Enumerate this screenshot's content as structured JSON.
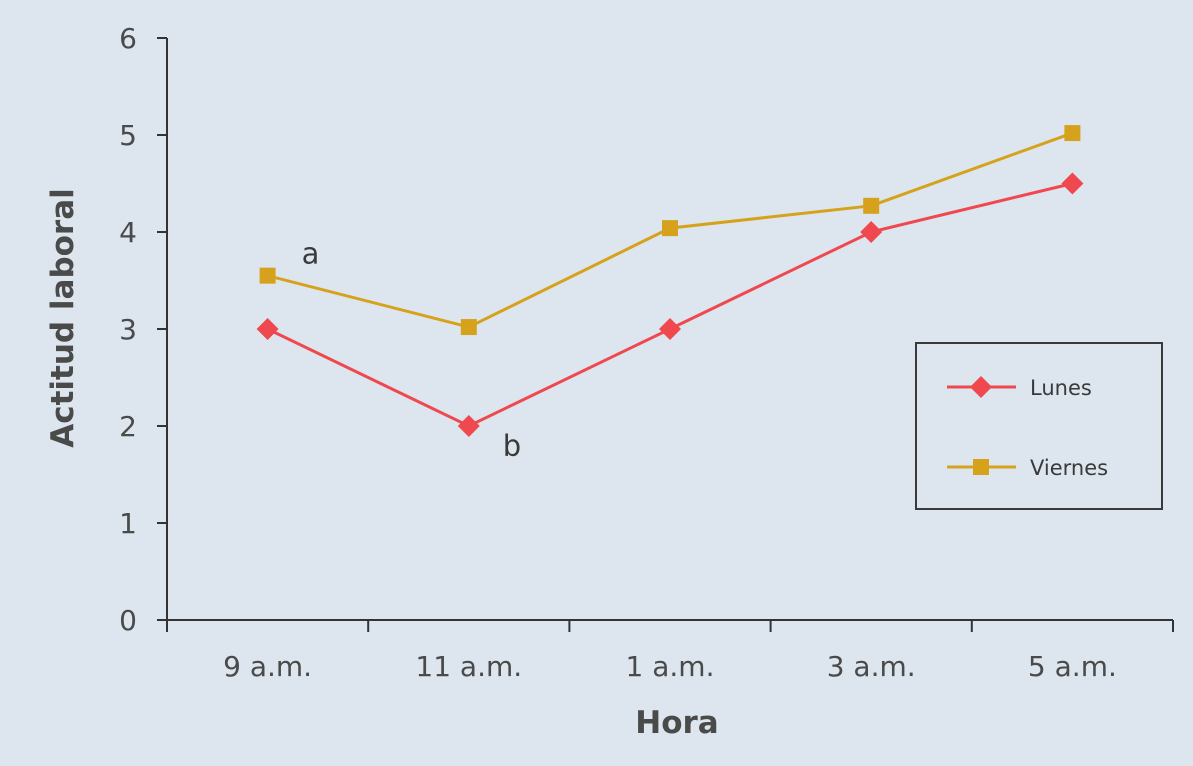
{
  "chart_data": {
    "type": "line",
    "categories": [
      "9 a.m.",
      "11 a.m.",
      "1 a.m.",
      "3 a.m.",
      "5 a.m."
    ],
    "series": [
      {
        "name": "Lunes",
        "values": [
          3.0,
          2.0,
          3.0,
          4.0,
          4.5
        ],
        "color": "#f0484f",
        "marker": "diamond"
      },
      {
        "name": "Viernes",
        "values": [
          3.55,
          3.02,
          4.04,
          4.27,
          5.02
        ],
        "color": "#d6a21c",
        "marker": "square"
      }
    ],
    "title": "",
    "xlabel": "Hora",
    "ylabel": "Actitud laboral",
    "ylim": [
      0,
      6
    ],
    "yticks": [
      "0",
      "1",
      "2",
      "3",
      "4",
      "5",
      "6"
    ],
    "annotations": [
      {
        "text": "a",
        "series": "Viernes",
        "category": "9 a.m."
      },
      {
        "text": "b",
        "series": "Lunes",
        "category": "11 a.m."
      }
    ],
    "grid": false,
    "legend": "right"
  }
}
